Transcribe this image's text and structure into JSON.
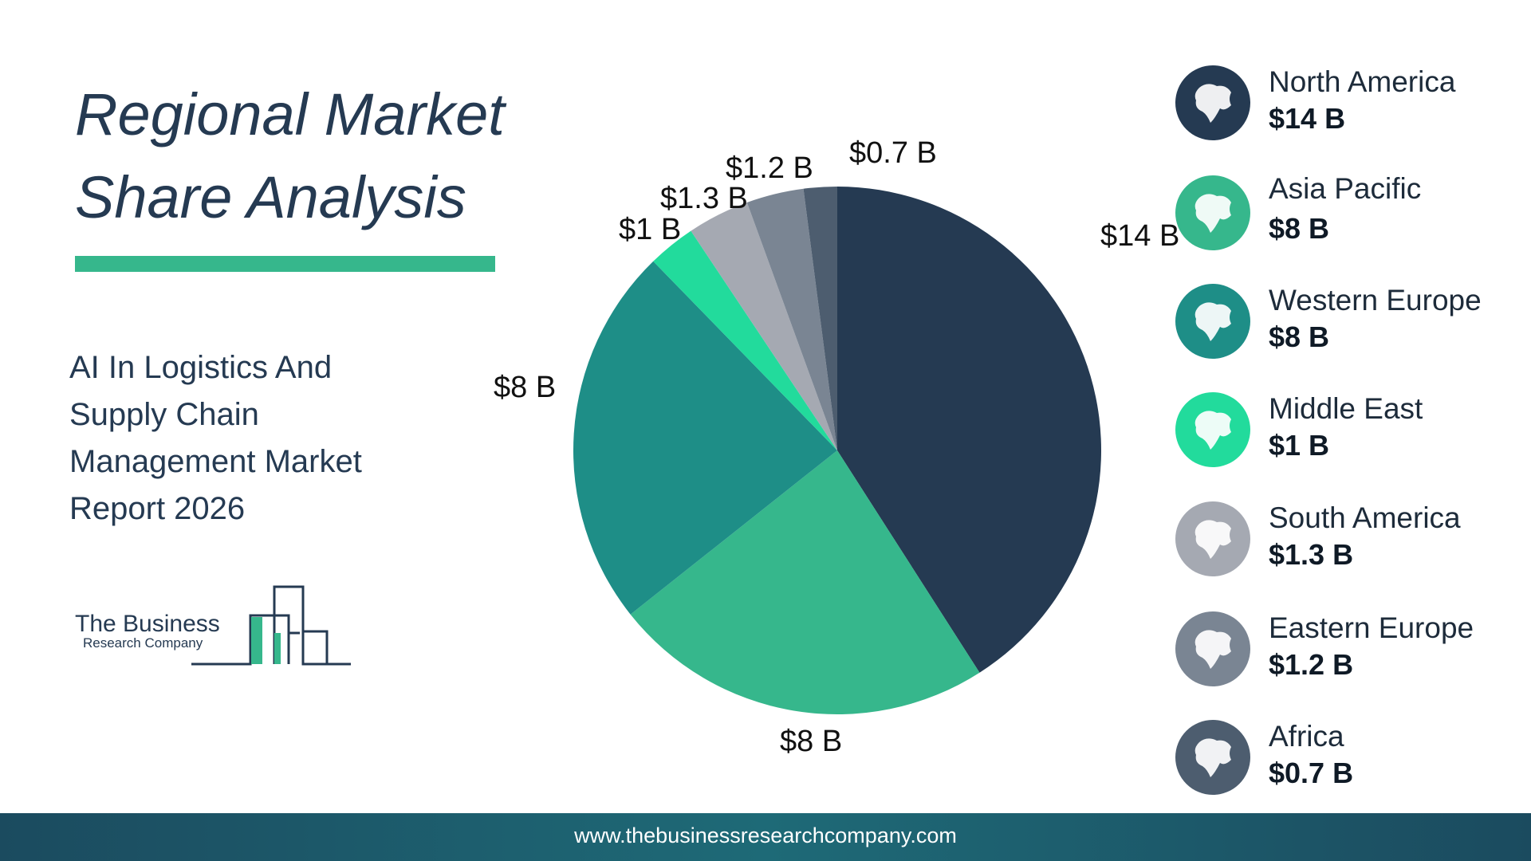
{
  "title": "Regional Market Share Analysis",
  "subtitle": "AI In Logistics And Supply Chain Management Market Report 2026",
  "logo": {
    "line1": "The Business",
    "line2": "Research Company"
  },
  "footer": {
    "url": "www.thebusinessresearchcompany.com"
  },
  "colors": {
    "accent": "#36b78c",
    "title": "#253a52",
    "footer": "#1b4b5f"
  },
  "chart_data": {
    "type": "pie",
    "title": "",
    "series": [
      {
        "name": "North America",
        "value": 14,
        "label": "$14 B",
        "legend_value": "$14 B",
        "color": "#253a52",
        "icon": "north-america-map-icon"
      },
      {
        "name": "Asia Pacific",
        "value": 8,
        "label": "$8 B",
        "legend_value": "$8 B",
        "color": "#36b78c",
        "icon": "asia-pacific-map-icon"
      },
      {
        "name": "Western Europe",
        "value": 8,
        "label": "$8 B",
        "legend_value": "$8 B",
        "color": "#1e8e87",
        "icon": "western-europe-map-icon"
      },
      {
        "name": "Middle East",
        "value": 1,
        "label": "$1 B",
        "legend_value": "$1 B",
        "color": "#22db9c",
        "icon": "middle-east-map-icon"
      },
      {
        "name": "South America",
        "value": 1.3,
        "label": "$1.3 B",
        "legend_value": "$1.3 B",
        "color": "#a5a9b2",
        "icon": "south-america-map-icon"
      },
      {
        "name": "Eastern Europe",
        "value": 1.2,
        "label": "$1.2 B",
        "legend_value": "$1.2 B",
        "color": "#7a8593",
        "icon": "eastern-europe-map-icon"
      },
      {
        "name": "Africa",
        "value": 0.7,
        "label": "$0.7 B",
        "legend_value": "$0.7 B",
        "color": "#4d5d6f",
        "icon": "africa-map-icon"
      }
    ]
  }
}
